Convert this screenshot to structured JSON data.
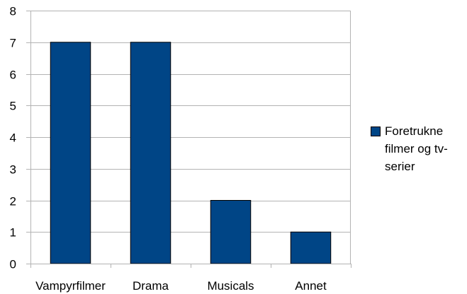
{
  "chart_data": {
    "type": "bar",
    "categories": [
      "Vampyrfilmer",
      "Drama",
      "Musicals",
      "Annet"
    ],
    "series": [
      {
        "name": "Foretrukne filmer og tv-serier",
        "values": [
          7,
          7,
          2,
          1
        ],
        "color": "#004586"
      }
    ],
    "ylim": [
      0,
      8
    ],
    "yticks": [
      0,
      1,
      2,
      3,
      4,
      5,
      6,
      7,
      8
    ],
    "grid": true,
    "legend_position": "right",
    "colors": {
      "grid": "#b3b3b3",
      "axis": "#b3b3b3",
      "bar_border": "#000000"
    }
  }
}
